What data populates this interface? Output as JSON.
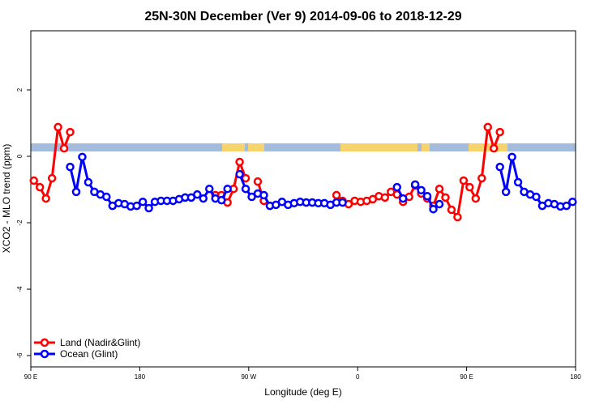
{
  "chart_data": {
    "type": "line",
    "title": "25N-30N December (Ver 9)   2014-09-06 to 2018-12-29",
    "xlabel": "Longitude (deg E)",
    "ylabel": "XCO2 - MLO trend (ppm)",
    "x": [
      92.5,
      97.5,
      102.5,
      107.5,
      112.5,
      117.5,
      122.5,
      127.5,
      132.5,
      137.5,
      142.5,
      147.5,
      152.5,
      157.5,
      162.5,
      167.5,
      172.5,
      177.5,
      182.5,
      187.5,
      192.5,
      197.5,
      202.5,
      207.5,
      212.5,
      217.5,
      222.5,
      227.5,
      232.5,
      237.5,
      242.5,
      247.5,
      252.5,
      257.5,
      262.5,
      267.5,
      272.5,
      277.5,
      282.5,
      287.5,
      292.5,
      297.5,
      302.5,
      307.5,
      312.5,
      317.5,
      322.5,
      327.5,
      332.5,
      337.5,
      342.5,
      347.5,
      352.5,
      357.5,
      362.5,
      367.5,
      372.5,
      377.5,
      382.5,
      387.5,
      392.5,
      397.5,
      402.5,
      407.5,
      412.5,
      417.5,
      422.5,
      427.5,
      432.5,
      437.5,
      442.5,
      447.5,
      452.5,
      457.5,
      462.5,
      467.5,
      472.5,
      477.5,
      482.5,
      487.5,
      492.5,
      497.5,
      502.5,
      507.5,
      512.5,
      517.5,
      522.5,
      527.5,
      532.5,
      537.5
    ],
    "series": [
      {
        "name": "Land (Nadir&Glint)",
        "color": "#ff0000",
        "values": [
          -0.73,
          -0.93,
          -1.27,
          -0.66,
          0.88,
          0.24,
          0.73,
          null,
          null,
          null,
          null,
          null,
          null,
          null,
          null,
          null,
          null,
          null,
          null,
          null,
          null,
          null,
          null,
          null,
          null,
          null,
          null,
          null,
          null,
          null,
          -1.17,
          -1.17,
          -1.39,
          -0.98,
          -0.17,
          -0.66,
          null,
          -0.76,
          -1.34,
          null,
          null,
          null,
          null,
          null,
          null,
          null,
          null,
          null,
          null,
          null,
          -1.17,
          -1.34,
          -1.44,
          -1.34,
          -1.37,
          -1.34,
          -1.29,
          -1.2,
          -1.24,
          -1.07,
          -1.15,
          -1.37,
          -1.22,
          -0.88,
          -1.12,
          -1.27,
          -1.49,
          -0.98,
          -1.24,
          -1.61,
          -1.83,
          -0.73,
          -0.93,
          -1.27,
          -0.66,
          0.88,
          0.24,
          0.73,
          null,
          null,
          null,
          null,
          null,
          null,
          null,
          null,
          null,
          null,
          null,
          null
        ]
      },
      {
        "name": "Ocean (Glint)",
        "color": "#0000ff",
        "values": [
          null,
          null,
          null,
          null,
          null,
          null,
          -0.32,
          -1.07,
          -0.02,
          -0.78,
          -1.07,
          -1.15,
          -1.22,
          -1.49,
          -1.41,
          -1.44,
          -1.51,
          -1.49,
          -1.37,
          -1.56,
          -1.37,
          -1.34,
          -1.34,
          -1.34,
          -1.29,
          -1.24,
          -1.24,
          -1.15,
          -1.27,
          -0.98,
          -1.27,
          -1.32,
          -0.98,
          null,
          -0.54,
          -0.98,
          -1.22,
          -1.12,
          -1.17,
          -1.49,
          -1.46,
          -1.37,
          -1.46,
          -1.41,
          -1.37,
          -1.39,
          -1.39,
          -1.41,
          -1.41,
          -1.46,
          -1.39,
          -1.39,
          null,
          null,
          null,
          null,
          null,
          null,
          null,
          null,
          -0.93,
          -1.27,
          null,
          -0.85,
          -1.02,
          -1.2,
          -1.59,
          -1.44,
          null,
          null,
          null,
          null,
          null,
          null,
          null,
          null,
          null,
          -0.32,
          -1.07,
          -0.02,
          -0.78,
          -1.07,
          -1.15,
          -1.22,
          -1.49,
          -1.41,
          -1.44,
          -1.51,
          -1.49,
          -1.37
        ]
      }
    ],
    "xlim": [
      90,
      540
    ],
    "xticks": [
      {
        "value": 90,
        "label": "90 E"
      },
      180,
      {
        "value": 270,
        "label": "90 W"
      },
      {
        "value": 360,
        "label": "0"
      },
      {
        "value": 450,
        "label": "90 E"
      },
      {
        "value": 540,
        "label": "180"
      }
    ],
    "ylim": [
      -6.34,
      3.78
    ],
    "yticks": [
      2,
      0,
      -2,
      -4,
      -6
    ],
    "legend": "bottomleft"
  }
}
